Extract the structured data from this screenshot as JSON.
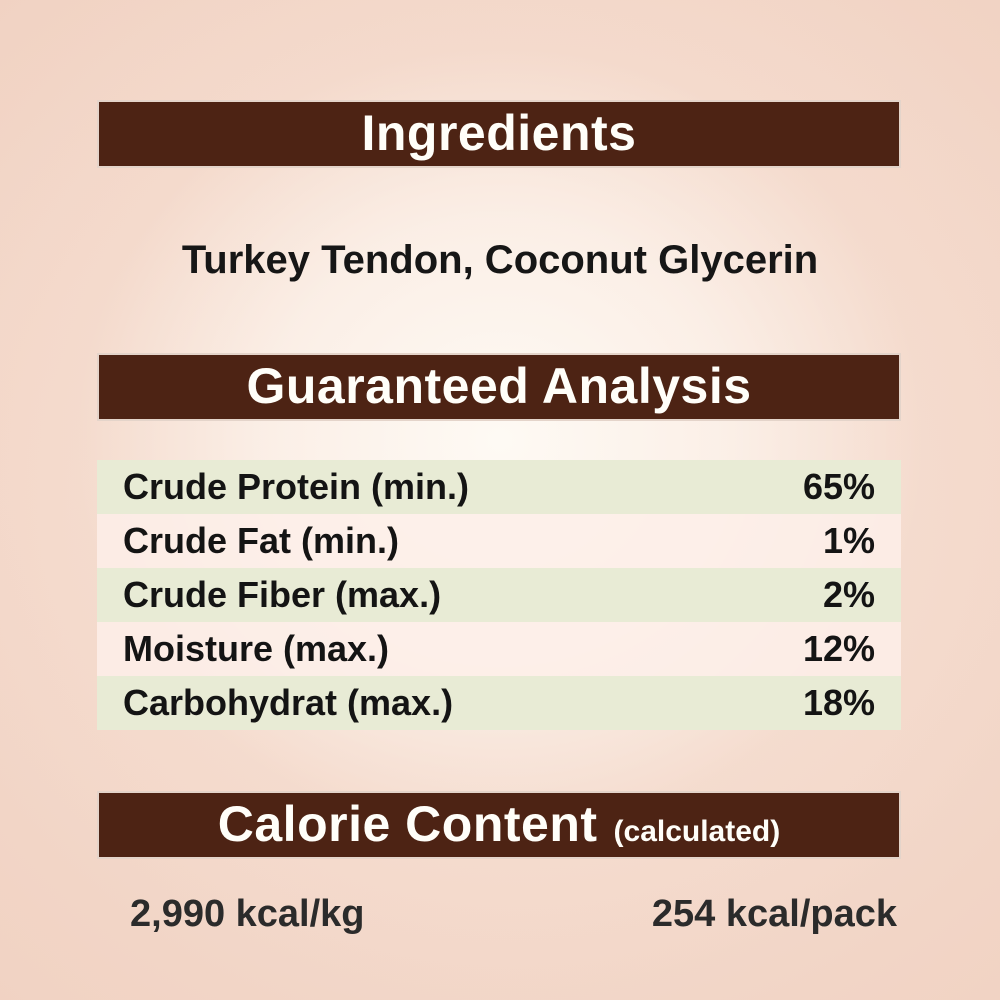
{
  "colors": {
    "bar_background": "#4d2314",
    "bar_text": "#fffef9",
    "row_green": "#e8ebd5",
    "row_pink": "#fdefe9",
    "page_background": "#f0d0c0",
    "page_background_center": "#fefaf4",
    "body_text": "#161616"
  },
  "ingredients": {
    "title": "Ingredients",
    "list": "Turkey Tendon, Coconut Glycerin"
  },
  "guaranteed_analysis": {
    "title": "Guaranteed Analysis",
    "rows": [
      {
        "label": "Crude Protein (min.)",
        "value": "65%"
      },
      {
        "label": "Crude Fat (min.)",
        "value": "1%"
      },
      {
        "label": "Crude Fiber (max.)",
        "value": "2%"
      },
      {
        "label": "Moisture (max.)",
        "value": "12%"
      },
      {
        "label": "Carbohydrat (max.)",
        "value": "18%"
      }
    ]
  },
  "calorie_content": {
    "title": "Calorie Content",
    "subtitle": "(calculated)",
    "kcal_per_kg": "2,990 kcal/kg",
    "kcal_per_pack": "254 kcal/pack"
  }
}
